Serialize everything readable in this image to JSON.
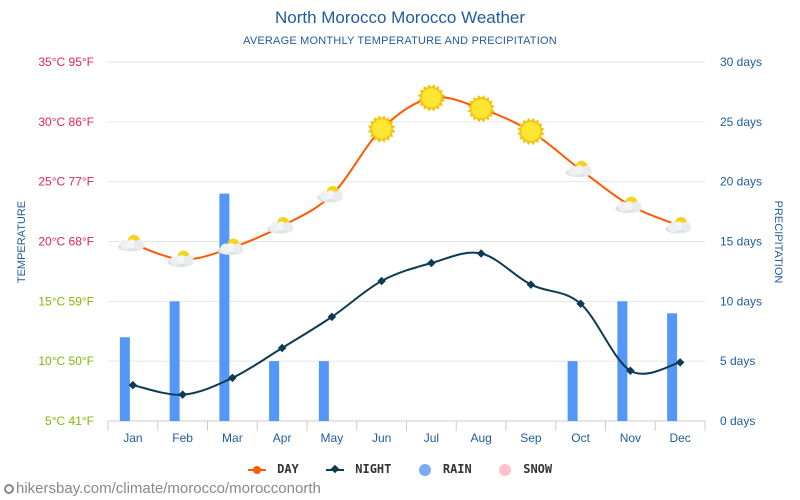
{
  "chart_data": {
    "type": "line+bar",
    "title": "North Morocco Morocco Weather",
    "subtitle": "AVERAGE MONTHLY TEMPERATURE AND PRECIPITATION",
    "ylabel_left": "TEMPERATURE",
    "ylabel_right": "PRECIPITATION",
    "categories": [
      "Jan",
      "Feb",
      "Mar",
      "Apr",
      "May",
      "Jun",
      "Jul",
      "Aug",
      "Sep",
      "Oct",
      "Nov",
      "Dec"
    ],
    "temp_ylim": [
      5,
      35
    ],
    "temp_ticks": [
      {
        "value": 35,
        "label": "35°C 95°F"
      },
      {
        "value": 30,
        "label": "30°C 86°F"
      },
      {
        "value": 25,
        "label": "25°C 77°F"
      },
      {
        "value": 20,
        "label": "20°C 68°F"
      },
      {
        "value": 15,
        "label": "15°C 59°F"
      },
      {
        "value": 10,
        "label": "10°C 50°F"
      },
      {
        "value": 5,
        "label": "5°C 41°F"
      }
    ],
    "precip_ylim": [
      0,
      30
    ],
    "precip_ticks": [
      {
        "value": 30,
        "label": "30 days"
      },
      {
        "value": 25,
        "label": "25 days"
      },
      {
        "value": 20,
        "label": "20 days"
      },
      {
        "value": 15,
        "label": "15 days"
      },
      {
        "value": 10,
        "label": "10 days"
      },
      {
        "value": 5,
        "label": "5 days"
      },
      {
        "value": 0,
        "label": "0 days"
      }
    ],
    "series": [
      {
        "name": "DAY",
        "type": "line",
        "color": "#ff5a00",
        "values": [
          19.8,
          18.5,
          19.5,
          21.3,
          23.9,
          29.4,
          32.0,
          31.1,
          29.2,
          26.0,
          23.0,
          21.3
        ]
      },
      {
        "name": "NIGHT",
        "type": "line",
        "color": "#0d3b55",
        "values": [
          8.0,
          7.2,
          8.6,
          11.1,
          13.7,
          16.7,
          18.2,
          19.0,
          16.4,
          14.8,
          9.2,
          9.9
        ]
      },
      {
        "name": "RAIN",
        "type": "bar",
        "unit": "days",
        "color": "#5497f8",
        "values": [
          7,
          10,
          19,
          5,
          5,
          0,
          0,
          0,
          0,
          5,
          10,
          9
        ]
      },
      {
        "name": "SNOW",
        "type": "bar",
        "unit": "days",
        "color": "#ffb6c1",
        "values": [
          0,
          0,
          0,
          0,
          0,
          0,
          0,
          0,
          0,
          0,
          0,
          0
        ]
      }
    ],
    "day_icons": [
      "cloudy",
      "cloudy",
      "cloudy",
      "cloudy",
      "cloudy",
      "sunny",
      "sunny",
      "sunny",
      "sunny",
      "cloudy",
      "cloudy",
      "cloudy"
    ],
    "legend_position": "bottom-center",
    "colors": {
      "temp_hot": "#e8235a",
      "temp_mild": "#7fb800",
      "right_axis": "#1f5c9e",
      "grid": "#e6e6e6"
    }
  },
  "footer": {
    "text": "hikersbay.com/climate/morocco/morocconorth"
  }
}
